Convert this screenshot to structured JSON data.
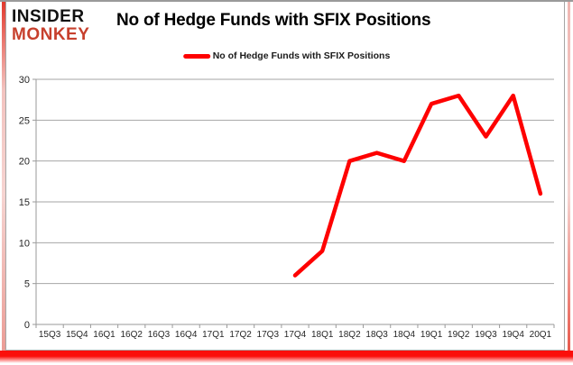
{
  "logo": {
    "line1": "INSIDER",
    "line2": "MONKEY"
  },
  "title": "No of Hedge Funds with SFIX Positions",
  "legend": {
    "label": "No of Hedge Funds with SFIX Positions",
    "line_color": "#fe0000"
  },
  "chart_data": {
    "type": "line",
    "title": "No of Hedge Funds with SFIX Positions",
    "categories": [
      "15Q3",
      "15Q4",
      "16Q1",
      "16Q2",
      "16Q3",
      "16Q4",
      "17Q1",
      "17Q2",
      "17Q3",
      "17Q4",
      "18Q1",
      "18Q2",
      "18Q3",
      "18Q4",
      "19Q1",
      "19Q2",
      "19Q3",
      "19Q4",
      "20Q1"
    ],
    "series": [
      {
        "name": "No of Hedge Funds with SFIX Positions",
        "color": "#fe0000",
        "values": [
          null,
          null,
          null,
          null,
          null,
          null,
          null,
          null,
          null,
          6,
          9,
          20,
          21,
          20,
          27,
          28,
          23,
          28,
          16
        ]
      }
    ],
    "xlabel": "",
    "ylabel": "",
    "ylim": [
      0,
      30
    ],
    "ytick_step": 5,
    "grid": true,
    "legend_position": "top"
  },
  "colors": {
    "grid": "#a6a6a6",
    "axis": "#9a9a9a",
    "tick_label": "#262626",
    "logo_black": "#111111",
    "logo_red": "#c7402d",
    "frame_red": "#fb0f0b"
  }
}
